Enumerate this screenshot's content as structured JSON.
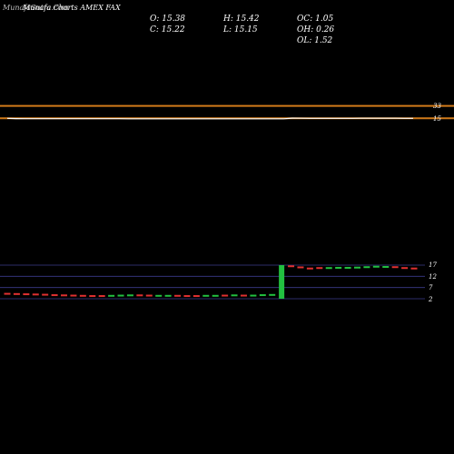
{
  "header": {
    "watermark": "MunafaSutra.com",
    "title": "Munafa Charts AMEX FAX"
  },
  "ohlc": {
    "open": "O: 15.38",
    "high": "H: 15.42",
    "oc": "OC: 1.05",
    "close": "C: 15.22",
    "low": "L: 15.15",
    "oh": "OH: 0.26",
    "ol": "OL: 1.52"
  },
  "upper_axis": {
    "label_top": "33",
    "label_bottom": "15"
  },
  "lower_axis": {
    "ticks": [
      "17",
      "12",
      "7",
      "2"
    ]
  },
  "colors": {
    "background": "#000000",
    "price_line": "#ffffff",
    "band": "#d07a1a",
    "up": "#22c040",
    "down": "#e03030",
    "grid": "#3a3a8a"
  },
  "chart_data": [
    {
      "type": "line",
      "title": "",
      "xlabel": "",
      "ylabel": "",
      "y_label_values": [
        33,
        15
      ],
      "bands": [
        33.5,
        15.9
      ],
      "x": [
        1,
        2,
        3,
        4,
        5,
        6,
        7,
        8,
        9,
        10,
        11,
        12,
        13,
        14,
        15,
        16,
        17,
        18,
        19,
        20,
        21,
        22,
        23,
        24,
        25,
        26,
        27,
        28,
        29,
        30,
        31,
        32,
        33,
        34,
        35,
        36,
        37,
        38,
        39,
        40,
        41,
        42,
        43,
        44,
        45,
        46,
        47,
        48
      ],
      "values": [
        15.9,
        15.5,
        15.45,
        15.42,
        15.4,
        15.39,
        15.38,
        15.37,
        15.37,
        15.36,
        15.35,
        15.34,
        15.33,
        15.33,
        15.32,
        15.32,
        15.32,
        15.31,
        15.31,
        15.3,
        15.3,
        15.3,
        15.3,
        15.29,
        15.29,
        15.29,
        15.29,
        15.29,
        15.28,
        15.28,
        15.28,
        15.3,
        15.3,
        16.1,
        16.0,
        15.95,
        15.93,
        15.95,
        15.95,
        15.95,
        15.96,
        15.97,
        15.98,
        16.0,
        15.99,
        15.97,
        15.93,
        15.9
      ]
    },
    {
      "type": "bar",
      "title": "",
      "ylim": [
        2,
        17
      ],
      "ticks": [
        17,
        12,
        7,
        2
      ],
      "bars": [
        {
          "v": 4.2,
          "d": "down"
        },
        {
          "v": 4.1,
          "d": "down"
        },
        {
          "v": 4.0,
          "d": "down"
        },
        {
          "v": 3.9,
          "d": "down"
        },
        {
          "v": 3.8,
          "d": "down"
        },
        {
          "v": 3.6,
          "d": "down"
        },
        {
          "v": 3.5,
          "d": "down"
        },
        {
          "v": 3.4,
          "d": "down"
        },
        {
          "v": 3.3,
          "d": "down"
        },
        {
          "v": 3.2,
          "d": "down"
        },
        {
          "v": 3.2,
          "d": "down"
        },
        {
          "v": 3.3,
          "d": "up"
        },
        {
          "v": 3.4,
          "d": "up"
        },
        {
          "v": 3.5,
          "d": "up"
        },
        {
          "v": 3.5,
          "d": "down"
        },
        {
          "v": 3.4,
          "d": "down"
        },
        {
          "v": 3.3,
          "d": "up"
        },
        {
          "v": 3.3,
          "d": "up"
        },
        {
          "v": 3.3,
          "d": "down"
        },
        {
          "v": 3.2,
          "d": "down"
        },
        {
          "v": 3.2,
          "d": "down"
        },
        {
          "v": 3.3,
          "d": "up"
        },
        {
          "v": 3.3,
          "d": "up"
        },
        {
          "v": 3.4,
          "d": "down"
        },
        {
          "v": 3.5,
          "d": "up"
        },
        {
          "v": 3.4,
          "d": "down"
        },
        {
          "v": 3.4,
          "d": "up"
        },
        {
          "v": 3.6,
          "d": "up"
        },
        {
          "v": 3.7,
          "d": "up"
        },
        {
          "v": 17.0,
          "d": "up",
          "big": true
        },
        {
          "v": 16.5,
          "d": "down"
        },
        {
          "v": 16.0,
          "d": "down"
        },
        {
          "v": 15.5,
          "d": "down"
        },
        {
          "v": 15.7,
          "d": "down"
        },
        {
          "v": 15.7,
          "d": "up"
        },
        {
          "v": 15.8,
          "d": "up"
        },
        {
          "v": 15.8,
          "d": "up"
        },
        {
          "v": 15.9,
          "d": "up"
        },
        {
          "v": 16.1,
          "d": "up"
        },
        {
          "v": 16.3,
          "d": "up"
        },
        {
          "v": 16.2,
          "d": "up"
        },
        {
          "v": 16.1,
          "d": "down"
        },
        {
          "v": 15.7,
          "d": "down"
        },
        {
          "v": 15.5,
          "d": "down"
        }
      ]
    }
  ]
}
